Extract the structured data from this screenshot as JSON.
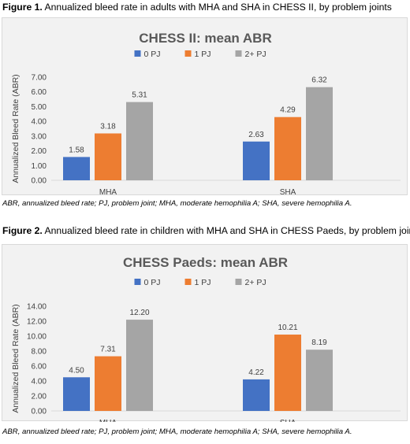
{
  "figure1": {
    "caption_label": "Figure 1.",
    "caption_text": " Annualized bleed rate in adults with MHA and SHA in CHESS II, by problem joints",
    "footnote": "ABR, annualized bleed rate; PJ, problem joint; MHA, moderate hemophilia A; SHA, severe hemophilia A."
  },
  "figure2": {
    "caption_label": "Figure 2.",
    "caption_text": " Annualized bleed rate in children with MHA and SHA in CHESS Paeds, by problem joints",
    "footnote": "ABR, annualized bleed rate; PJ, problem joint; MHA, moderate hemophilia A; SHA, severe hemophilia A."
  },
  "chart_data": [
    {
      "type": "bar",
      "title": "CHESS II: mean ABR",
      "xlabel": "",
      "ylabel": "Annualized Bleed Rate (ABR)",
      "categories": [
        "MHA",
        "SHA"
      ],
      "ylim": [
        0,
        7
      ],
      "yticks": [
        "0.00",
        "1.00",
        "2.00",
        "3.00",
        "4.00",
        "5.00",
        "6.00",
        "7.00"
      ],
      "grid": false,
      "legend": "top-center",
      "series": [
        {
          "name": "0 PJ",
          "color": "#4472c4",
          "values": [
            1.58,
            2.63
          ],
          "labels": [
            "1.58",
            "2.63"
          ]
        },
        {
          "name": "1 PJ",
          "color": "#ed7d31",
          "values": [
            3.18,
            4.29
          ],
          "labels": [
            "3.18",
            "4.29"
          ]
        },
        {
          "name": "2+ PJ",
          "color": "#a5a5a5",
          "values": [
            5.31,
            6.32
          ],
          "labels": [
            "5.31",
            "6.32"
          ]
        }
      ]
    },
    {
      "type": "bar",
      "title": "CHESS Paeds: mean ABR",
      "xlabel": "",
      "ylabel": "Annualized Bleed Rate (ABR)",
      "categories": [
        "MHA",
        "SHA"
      ],
      "ylim": [
        0,
        14
      ],
      "yticks": [
        "0.00",
        "2.00",
        "4.00",
        "6.00",
        "8.00",
        "10.00",
        "12.00",
        "14.00"
      ],
      "grid": false,
      "legend": "top-center",
      "series": [
        {
          "name": "0 PJ",
          "color": "#4472c4",
          "values": [
            4.5,
            4.22
          ],
          "labels": [
            "4.50",
            "4.22"
          ]
        },
        {
          "name": "1 PJ",
          "color": "#ed7d31",
          "values": [
            7.31,
            10.21
          ],
          "labels": [
            "7.31",
            "10.21"
          ]
        },
        {
          "name": "2+ PJ",
          "color": "#a5a5a5",
          "values": [
            12.2,
            8.19
          ],
          "labels": [
            "12.20",
            "8.19"
          ]
        }
      ]
    }
  ]
}
